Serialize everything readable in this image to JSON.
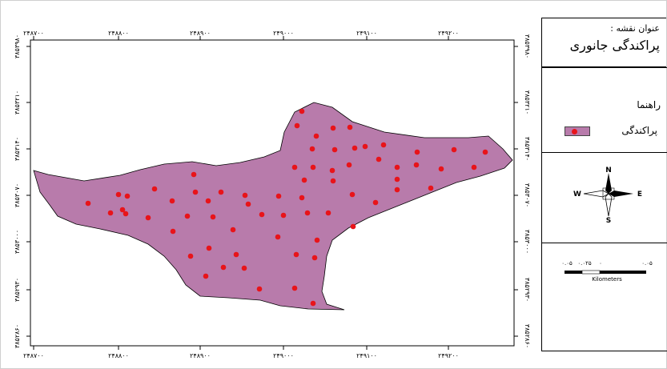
{
  "map": {
    "polygon_color": "#b87bab",
    "point_color": "#e8141a",
    "top_x_ticks": [
      "۲۴۸۷۰۰",
      "۲۴۸۸۰۰",
      "۲۴۸۹۰۰",
      "۲۴۹۰۰۰",
      "۲۴۹۱۰۰",
      "۲۴۹۲۰۰"
    ],
    "bottom_x_ticks": [
      "۲۴۸۷۰۰",
      "۲۴۸۸۰۰",
      "۲۴۸۹۰۰",
      "۲۴۹۰۰۰",
      "۲۴۹۱۰۰",
      "۲۴۹۲۰۰"
    ],
    "left_y_ticks": [
      "۳۸۵۳۹۸۰",
      "۳۸۵۳۲۱۰",
      "۳۸۵۳۱۴۰",
      "۳۸۵۳۰۷۰",
      "۳۸۵۳۰۰۰",
      "۳۸۵۲۹۳۰",
      "۳۸۵۲۸۶۰"
    ],
    "right_y_ticks": [
      "۳۸۵۳۹۸۰",
      "۳۸۵۳۲۱۰",
      "۳۸۵۳۱۴۰",
      "۳۸۵۳۰۷۰",
      "۳۸۵۳۰۰۰",
      "۳۸۵۲۹۳۰",
      "۳۸۵۲۸۶۰"
    ]
  },
  "title_box": {
    "label": "عنوان نقشه :",
    "title": "پراکندگی جانوری"
  },
  "legend": {
    "heading": "راهنما",
    "item_label": "پراکندگی"
  },
  "north_arrow": {
    "n": "N",
    "s": "S",
    "e": "E",
    "w": "W"
  },
  "scale_bar": {
    "labels": [
      "۰.۰۵",
      "۰.۰۲۵",
      "۰",
      "۰.۰۵"
    ],
    "unit": "Kilometers"
  }
}
